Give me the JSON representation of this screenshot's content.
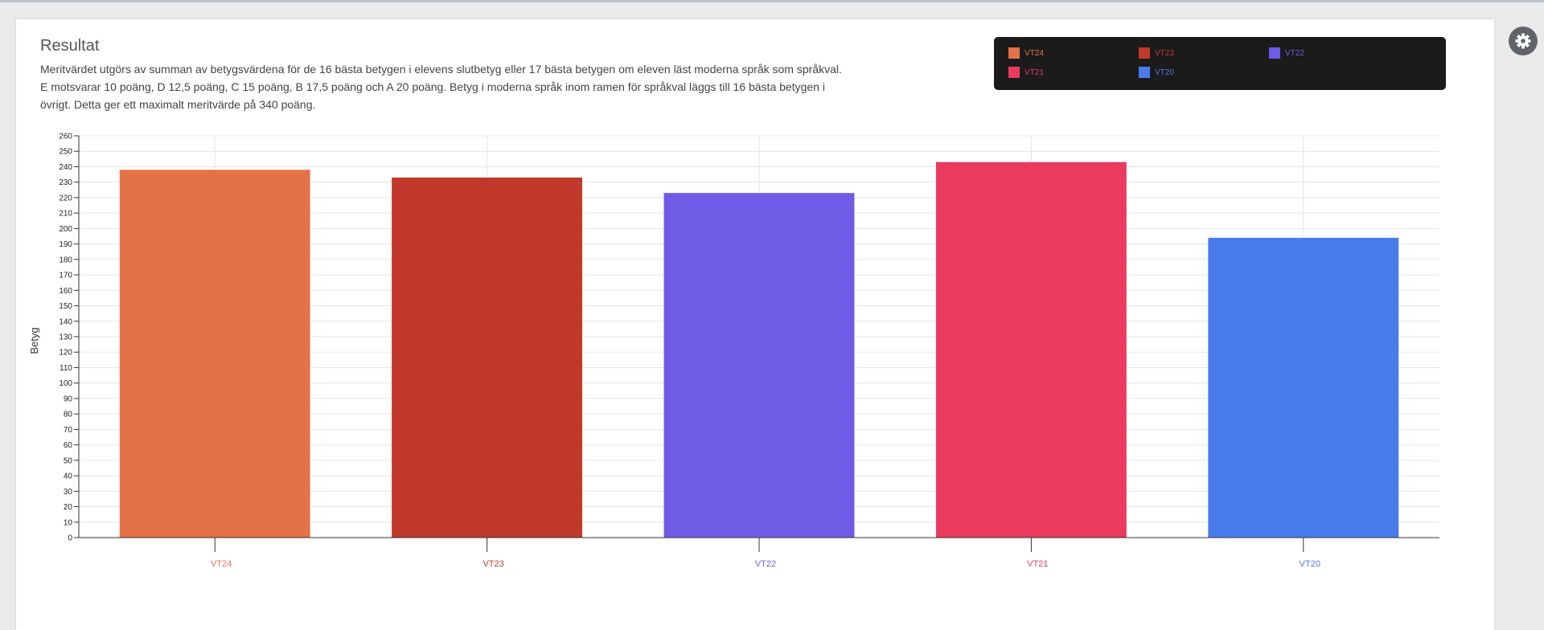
{
  "panel": {
    "title": "Resultat",
    "description": "Meritvärdet utgörs av summan av betygsvärdena för de 16 bästa betygen i elevens slutbetyg eller 17 bästa betygen om eleven läst moderna språk som språkval. E motsvarar 10 poäng, D 12,5 poäng, C 15 poäng, B 17,5 poäng och A 20 poäng. Betyg i moderna språk inom ramen för språkval läggs till 16 bästa betygen i övrigt. Detta ger ett maximalt meritvärde på 340 poäng."
  },
  "settings": {
    "icon": "gear-icon"
  },
  "chart_data": {
    "type": "bar",
    "title": "",
    "xlabel": "",
    "ylabel": "Betyg",
    "ylim": [
      0,
      260
    ],
    "ytick_step": 10,
    "grid": true,
    "legend_position": "top-right",
    "categories": [
      "VT24",
      "VT23",
      "VT22",
      "VT21",
      "VT20"
    ],
    "values": [
      238,
      233,
      223,
      243,
      194
    ],
    "colors": [
      "#e47249",
      "#c0392b",
      "#6e5ce6",
      "#ea3b5e",
      "#4a7bea"
    ],
    "legend": [
      {
        "label": "VT24",
        "color": "#e47249"
      },
      {
        "label": "VT23",
        "color": "#c0392b"
      },
      {
        "label": "VT22",
        "color": "#6e5ce6"
      },
      {
        "label": "VT21",
        "color": "#ea3b5e"
      },
      {
        "label": "VT20",
        "color": "#4a7bea"
      }
    ]
  }
}
